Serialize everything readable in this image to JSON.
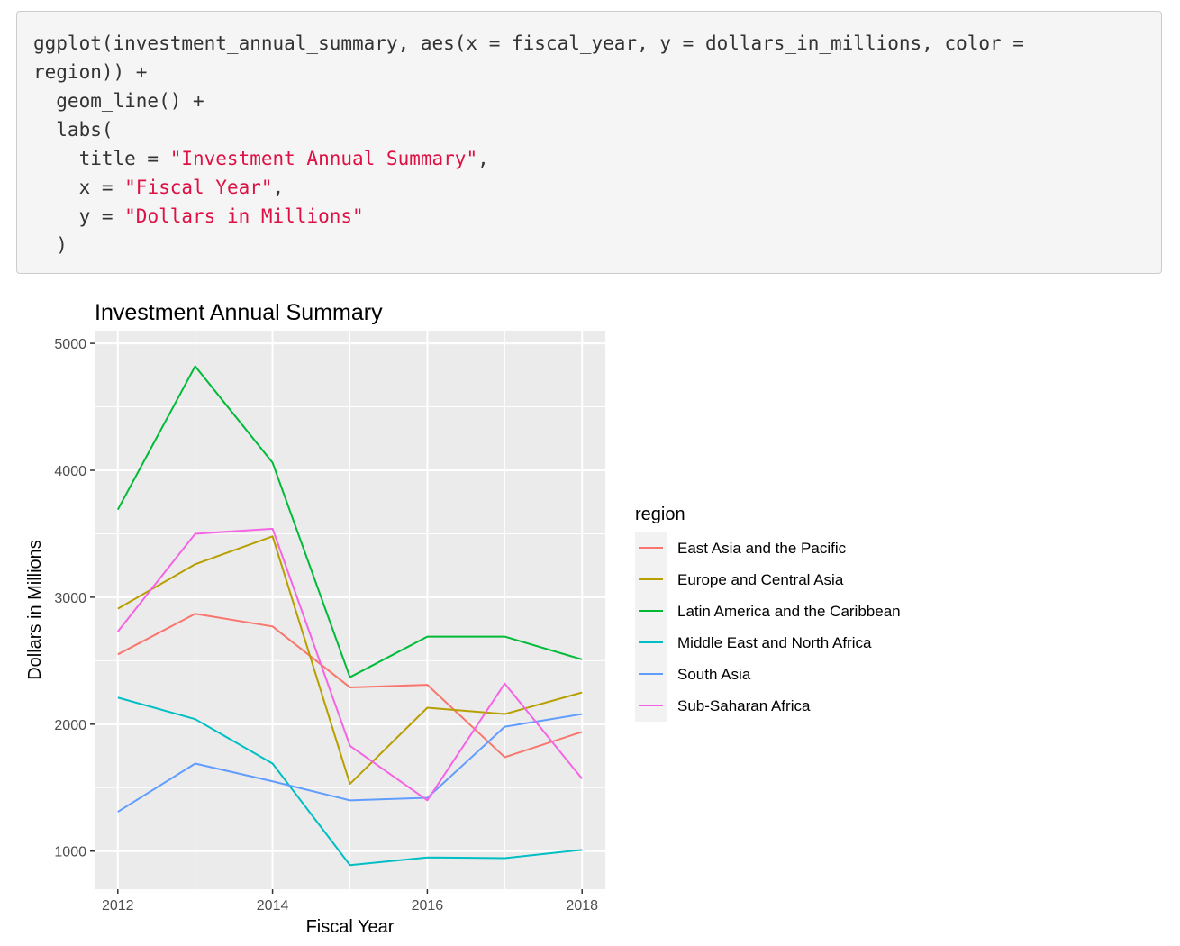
{
  "code": {
    "lines": [
      {
        "parts": [
          {
            "text": "ggplot(investment_annual_summary, aes(x = fiscal_year, y = dollars_in_millions, color =",
            "str": false
          }
        ]
      },
      {
        "parts": [
          {
            "text": "region)) +",
            "str": false
          }
        ]
      },
      {
        "parts": [
          {
            "text": "  geom_line() +",
            "str": false
          }
        ]
      },
      {
        "parts": [
          {
            "text": "  labs(",
            "str": false
          }
        ]
      },
      {
        "parts": [
          {
            "text": "    title = ",
            "str": false
          },
          {
            "text": "\"Investment Annual Summary\"",
            "str": true
          },
          {
            "text": ",",
            "str": false
          }
        ]
      },
      {
        "parts": [
          {
            "text": "    x = ",
            "str": false
          },
          {
            "text": "\"Fiscal Year\"",
            "str": true
          },
          {
            "text": ",",
            "str": false
          }
        ]
      },
      {
        "parts": [
          {
            "text": "    y = ",
            "str": false
          },
          {
            "text": "\"Dollars in Millions\"",
            "str": true
          }
        ]
      },
      {
        "parts": [
          {
            "text": "  )",
            "str": false
          }
        ]
      }
    ]
  },
  "chart_data": {
    "type": "line",
    "title": "Investment Annual Summary",
    "xlabel": "Fiscal Year",
    "ylabel": "Dollars in Millions",
    "xlim": [
      2011.7,
      2018.3
    ],
    "ylim": [
      700,
      5100
    ],
    "x_ticks": [
      2012,
      2014,
      2016,
      2018
    ],
    "y_ticks": [
      1000,
      2000,
      3000,
      4000,
      5000
    ],
    "grid": true,
    "legend_title": "region",
    "legend_position": "right",
    "x": [
      2012,
      2013,
      2014,
      2015,
      2016,
      2017,
      2018
    ],
    "series": [
      {
        "name": "East Asia and the Pacific",
        "color": "#F8766D",
        "values": [
          2550,
          2870,
          2770,
          2290,
          2310,
          1740,
          1940
        ]
      },
      {
        "name": "Europe and Central Asia",
        "color": "#B79F00",
        "values": [
          2910,
          3260,
          3480,
          1530,
          2130,
          2080,
          2250
        ]
      },
      {
        "name": "Latin America and the Caribbean",
        "color": "#00BA38",
        "values": [
          3690,
          4820,
          4060,
          2370,
          2690,
          2690,
          2510
        ]
      },
      {
        "name": "Middle East and North Africa",
        "color": "#00BFC4",
        "values": [
          2210,
          2040,
          1690,
          890,
          950,
          945,
          1010
        ]
      },
      {
        "name": "South Asia",
        "color": "#619CFF",
        "values": [
          1310,
          1690,
          1550,
          1400,
          1420,
          1980,
          2080
        ]
      },
      {
        "name": "Sub-Saharan Africa",
        "color": "#F564E3",
        "values": [
          2730,
          3500,
          3540,
          1830,
          1400,
          2320,
          1570
        ]
      }
    ]
  }
}
